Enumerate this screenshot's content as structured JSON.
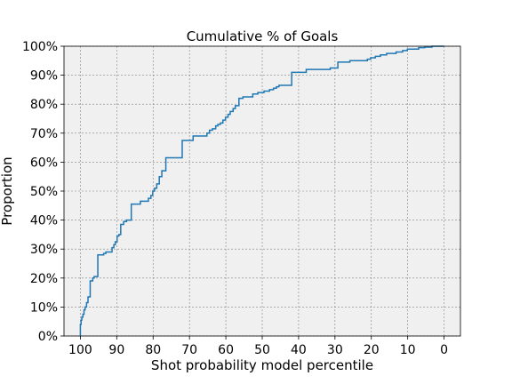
{
  "chart_data": {
    "type": "line",
    "step": true,
    "title": "Cumulative % of Goals",
    "xlabel": "Shot probability model percentile",
    "ylabel": "Proportion",
    "xlim": [
      104.5,
      -4.5
    ],
    "ylim": [
      0,
      1
    ],
    "xticks": [
      100,
      90,
      80,
      70,
      60,
      50,
      40,
      30,
      20,
      10,
      0
    ],
    "xtick_labels": [
      "100",
      "90",
      "80",
      "70",
      "60",
      "50",
      "40",
      "30",
      "20",
      "10",
      "0"
    ],
    "yticks": [
      0,
      0.1,
      0.2,
      0.3,
      0.4,
      0.5,
      0.6,
      0.7,
      0.8,
      0.9,
      1.0
    ],
    "ytick_labels": [
      "0%",
      "10%",
      "20%",
      "30%",
      "40%",
      "50%",
      "60%",
      "70%",
      "80%",
      "90%",
      "100%"
    ],
    "grid": true,
    "background_color": "#f0f0f0",
    "line_color": "#1f77b4",
    "series": [
      {
        "x": [
          100,
          99.8,
          99.6,
          99.3,
          99.0,
          98.7,
          98.3,
          97.9,
          97.3,
          96.6,
          96.2,
          95.2,
          93.6,
          93.0,
          91.3,
          90.8,
          90.4,
          89.9,
          89.4,
          88.9,
          88.1,
          87.3,
          86.0,
          83.5,
          81.3,
          80.6,
          80.1,
          79.6,
          79.0,
          78.3,
          77.6,
          76.5,
          75.0,
          72.0,
          69.0,
          65.2,
          64.5,
          63.7,
          62.8,
          62.2,
          61.5,
          60.8,
          60.1,
          59.4,
          58.8,
          58.0,
          57.4,
          56.4,
          55.3,
          52.6,
          51.2,
          49.5,
          48.0,
          46.9,
          46.1,
          45.4,
          44.6,
          43.8,
          43.0,
          41.9,
          37.9,
          31.3,
          30.6,
          29.2,
          25.9,
          21.1,
          20.2,
          18.9,
          17.5,
          15.8,
          13.2,
          11.4,
          10.1,
          8.7,
          7.0,
          5.3,
          3.3,
          1.4,
          0.6,
          0
        ],
        "y": [
          0,
          0.04,
          0.055,
          0.065,
          0.075,
          0.09,
          0.1,
          0.115,
          0.135,
          0.19,
          0.2,
          0.205,
          0.28,
          0.285,
          0.29,
          0.305,
          0.315,
          0.325,
          0.345,
          0.35,
          0.385,
          0.395,
          0.4,
          0.455,
          0.465,
          0.475,
          0.485,
          0.5,
          0.51,
          0.525,
          0.55,
          0.57,
          0.615,
          0.615,
          0.675,
          0.69,
          0.7,
          0.71,
          0.715,
          0.725,
          0.73,
          0.735,
          0.745,
          0.755,
          0.765,
          0.775,
          0.785,
          0.795,
          0.82,
          0.825,
          0.835,
          0.84,
          0.845,
          0.85,
          0.855,
          0.86,
          0.865,
          0.865,
          0.865,
          0.865,
          0.91,
          0.92,
          0.925,
          0.925,
          0.945,
          0.95,
          0.955,
          0.96,
          0.965,
          0.97,
          0.975,
          0.98,
          0.985,
          0.99,
          0.99,
          0.995,
          0.997,
          1.0,
          1.0,
          1.0
        ]
      }
    ]
  }
}
